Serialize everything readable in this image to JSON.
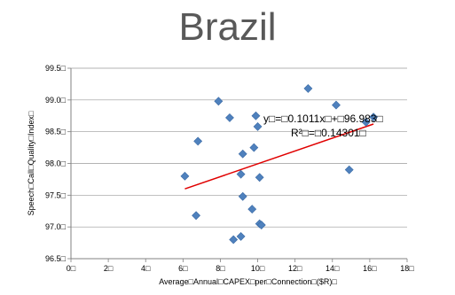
{
  "chart_data": {
    "type": "scatter",
    "title": "Brazil",
    "xlabel": "Average□Annual□CAPEX□per□Connection□($R)□",
    "ylabel": "Speech□Call□Quality□Index□",
    "xlim": [
      0,
      18
    ],
    "ylim": [
      96.5,
      99.5
    ],
    "x_ticks": [
      "0□",
      "2□",
      "4□",
      "6□",
      "8□",
      "10□",
      "12□",
      "14□",
      "16□",
      "18□"
    ],
    "y_ticks": [
      "96.5□",
      "97.0□",
      "97.5□",
      "98.0□",
      "98.5□",
      "99.0□",
      "99.5□"
    ],
    "grid": "horizontal",
    "marker_color": "#4f81bd",
    "trendline_color": "#e00000",
    "points": [
      {
        "x": 6.1,
        "y": 97.8
      },
      {
        "x": 6.7,
        "y": 97.18
      },
      {
        "x": 6.8,
        "y": 98.35
      },
      {
        "x": 7.9,
        "y": 98.98
      },
      {
        "x": 8.5,
        "y": 98.72
      },
      {
        "x": 8.7,
        "y": 96.8
      },
      {
        "x": 9.1,
        "y": 96.85
      },
      {
        "x": 9.1,
        "y": 97.83
      },
      {
        "x": 9.2,
        "y": 98.15
      },
      {
        "x": 9.2,
        "y": 97.48
      },
      {
        "x": 9.7,
        "y": 97.28
      },
      {
        "x": 9.8,
        "y": 98.25
      },
      {
        "x": 9.9,
        "y": 98.75
      },
      {
        "x": 10.0,
        "y": 98.58
      },
      {
        "x": 10.1,
        "y": 97.78
      },
      {
        "x": 10.1,
        "y": 97.05
      },
      {
        "x": 10.2,
        "y": 97.03
      },
      {
        "x": 12.7,
        "y": 99.18
      },
      {
        "x": 14.2,
        "y": 98.92
      },
      {
        "x": 14.9,
        "y": 97.9
      },
      {
        "x": 15.8,
        "y": 98.65
      },
      {
        "x": 16.2,
        "y": 98.73
      }
    ],
    "trendline": {
      "x_start": 6.1,
      "x_end": 16.2,
      "slope": 0.1011,
      "intercept": 96.983
    },
    "annotations": [
      "y□=□0.1011x□+□96.983□",
      "R²□=□0.14301□"
    ]
  }
}
